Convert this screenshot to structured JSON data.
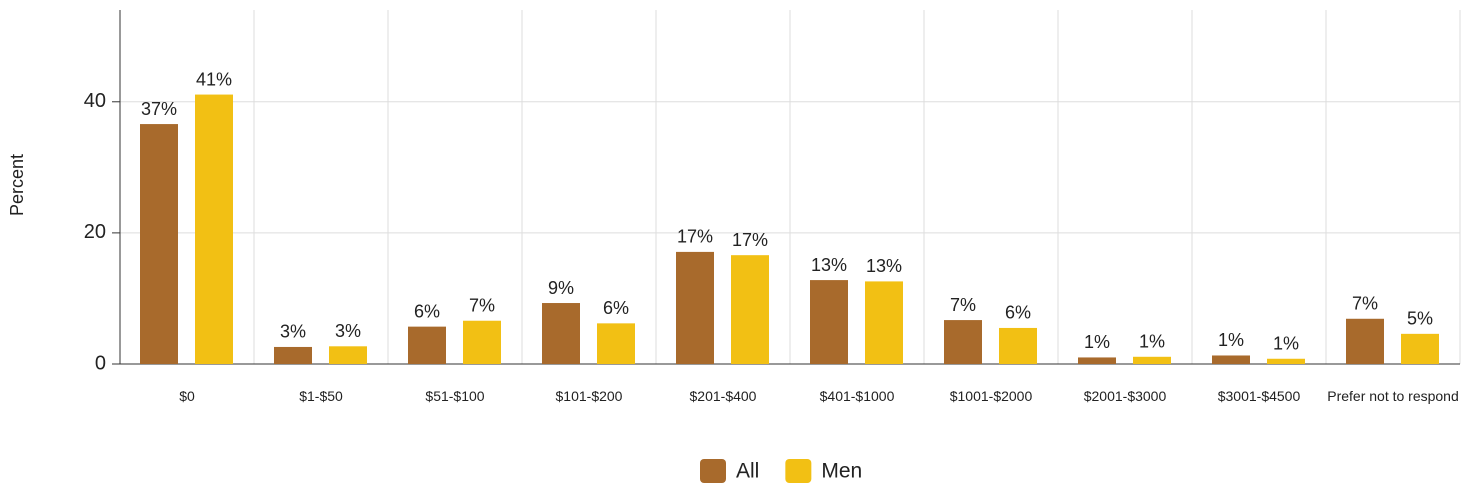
{
  "chart_data": {
    "type": "bar",
    "y_label": "Percent",
    "categories": [
      "$0",
      "$1-$50",
      "$51-$100",
      "$101-$200",
      "$201-$400",
      "$401-$1000",
      "$1001-$2000",
      "$2001-$3000",
      "$3001-$4500",
      "Prefer not to respond"
    ],
    "series": [
      {
        "name": "All",
        "color": "#a86a2c",
        "values": [
          36.6,
          2.6,
          5.7,
          9.3,
          17.1,
          12.8,
          6.7,
          1.0,
          1.3,
          6.9
        ],
        "value_labels": [
          "37%",
          "3%",
          "6%",
          "9%",
          "17%",
          "13%",
          "7%",
          "1%",
          "1%",
          "7%"
        ]
      },
      {
        "name": "Men",
        "color": "#f2c014",
        "values": [
          41.1,
          2.7,
          6.6,
          6.2,
          16.6,
          12.6,
          5.5,
          1.1,
          0.8,
          4.6
        ],
        "value_labels": [
          "41%",
          "3%",
          "7%",
          "6%",
          "17%",
          "13%",
          "6%",
          "1%",
          "1%",
          "5%"
        ]
      }
    ],
    "ylim": [
      0,
      54
    ],
    "yticks": [
      0,
      20,
      40
    ],
    "grid": true,
    "legend": "bottom"
  }
}
